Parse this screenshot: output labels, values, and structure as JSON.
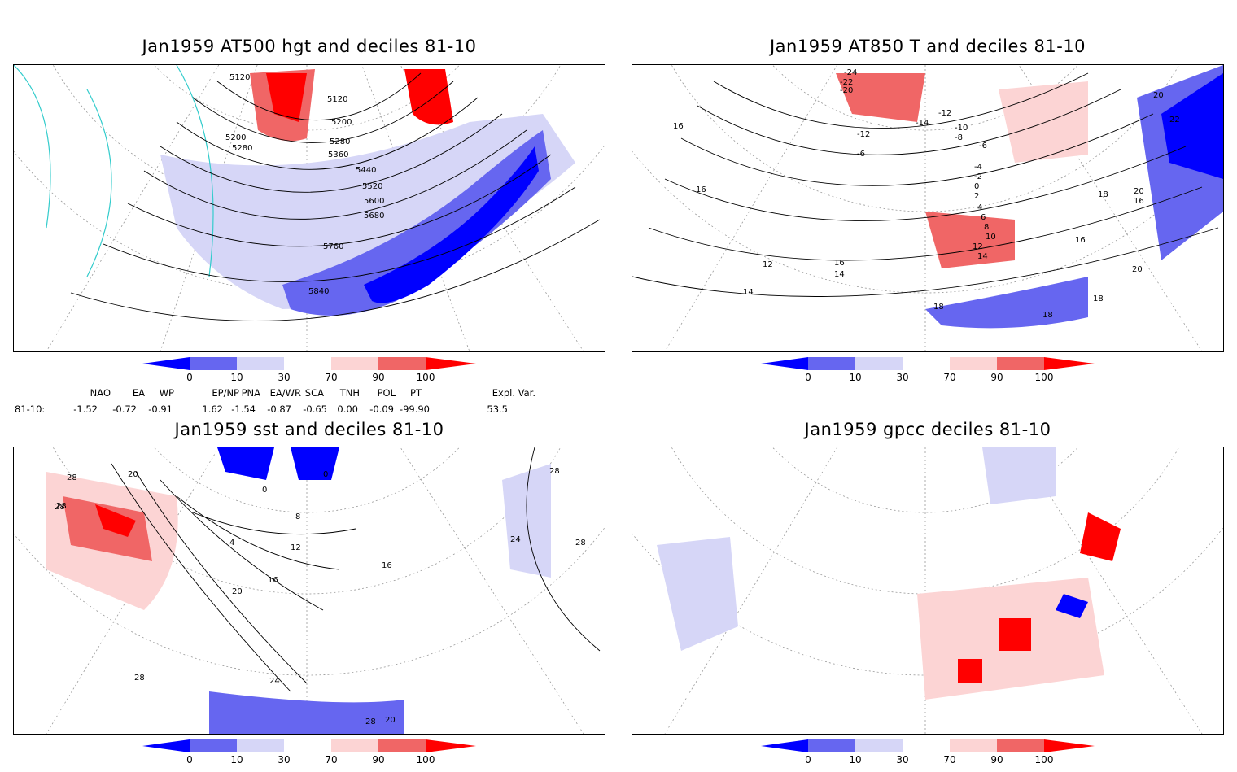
{
  "panels": [
    {
      "title": "Jan1959 AT500 hgt and deciles 81-10",
      "contour_labels": [
        "5120",
        "5120",
        "5200",
        "5200",
        "5280",
        "5280",
        "5360",
        "5440",
        "5520",
        "5600",
        "5680",
        "5760",
        "5840"
      ]
    },
    {
      "title": "Jan1959 AT850 T and deciles 81-10",
      "contour_labels": [
        "-24",
        "-22",
        "-20",
        "-12",
        "-14",
        "-12",
        "-10",
        "-8",
        "-6",
        "-6",
        "-4",
        "-2",
        "0",
        "2",
        "4",
        "6",
        "8",
        "10",
        "12",
        "14",
        "16",
        "18",
        "20",
        "22",
        "16",
        "14",
        "12",
        "14",
        "16",
        "16",
        "18",
        "20",
        "16",
        "18",
        "18",
        "20"
      ]
    },
    {
      "title": "Jan1959 sst and deciles 81-10",
      "contour_labels": [
        "28",
        "28",
        "28",
        "20",
        "0",
        "0",
        "4",
        "8",
        "12",
        "20",
        "16",
        "16",
        "24",
        "24",
        "28",
        "28",
        "28",
        "28",
        "20"
      ]
    },
    {
      "title": "Jan1959 gpcc deciles 81-10",
      "contour_labels": []
    }
  ],
  "colorbar": {
    "labels": [
      "0",
      "10",
      "30",
      "70",
      "90",
      "100"
    ],
    "colors": [
      "#0000ff",
      "#6666f0",
      "#d6d6f7",
      "#ffffff",
      "#fcd4d4",
      "#f06666",
      "#ff0000"
    ]
  },
  "indices": {
    "row_label": "81-10:",
    "columns": [
      {
        "name": "NAO",
        "value": "-1.52"
      },
      {
        "name": "EA",
        "value": "-0.72"
      },
      {
        "name": "WP",
        "value": "-0.91"
      },
      {
        "name": "EP/NP",
        "value": "1.62"
      },
      {
        "name": "PNA",
        "value": "-1.54"
      },
      {
        "name": "EA/WR",
        "value": "-0.87"
      },
      {
        "name": "SCA",
        "value": "-0.65"
      },
      {
        "name": "TNH",
        "value": "0.00"
      },
      {
        "name": "POL",
        "value": "-0.09"
      },
      {
        "name": "PT",
        "value": "-99.90"
      },
      {
        "name": "Expl. Var.",
        "value": "53.5"
      }
    ]
  }
}
